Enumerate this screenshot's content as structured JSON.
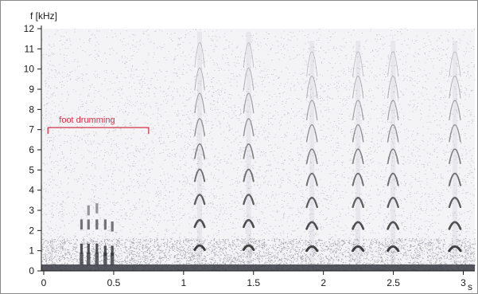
{
  "chart_data": {
    "type": "spectrogram",
    "xlabel": "s",
    "ylabel": "f [kHz]",
    "xlim": [
      0,
      3.05
    ],
    "ylim": [
      0,
      12
    ],
    "x_ticks": [
      {
        "value": 0,
        "label": "0"
      },
      {
        "value": 0.5,
        "label": "0.5"
      },
      {
        "value": 1,
        "label": "1"
      },
      {
        "value": 1.5,
        "label": "1.5"
      },
      {
        "value": 2,
        "label": "2"
      },
      {
        "value": 2.5,
        "label": "2.5"
      },
      {
        "value": 3,
        "label": "3"
      }
    ],
    "y_ticks": [
      {
        "value": 0,
        "label": "0"
      },
      {
        "value": 1,
        "label": "1"
      },
      {
        "value": 2,
        "label": "2"
      },
      {
        "value": 3,
        "label": "3"
      },
      {
        "value": 4,
        "label": "4"
      },
      {
        "value": 5,
        "label": "5"
      },
      {
        "value": 6,
        "label": "6"
      },
      {
        "value": 7,
        "label": "7"
      },
      {
        "value": 8,
        "label": "8"
      },
      {
        "value": 9,
        "label": "9"
      },
      {
        "value": 10,
        "label": "10"
      },
      {
        "value": 11,
        "label": "11"
      },
      {
        "value": 12,
        "label": "12"
      }
    ],
    "grid": false,
    "annotation": {
      "label": "foot drumming",
      "x_start": 0.03,
      "x_end": 0.75,
      "y": 7.1,
      "color": "#d2334b"
    },
    "drumming_bursts": [
      {
        "t": 0.27,
        "bands": [
          1.1,
          2.3
        ]
      },
      {
        "t": 0.32,
        "bands": [
          1.1,
          2.3,
          3.0
        ]
      },
      {
        "t": 0.38,
        "bands": [
          1.1,
          2.3,
          3.1
        ]
      },
      {
        "t": 0.44,
        "bands": [
          1.0,
          2.3
        ]
      },
      {
        "t": 0.49,
        "bands": [
          1.0,
          2.2
        ]
      }
    ],
    "calls": [
      {
        "t": 1.08,
        "duration": 0.07,
        "fundamental_khz": 1.25,
        "harmonics": 9
      },
      {
        "t": 1.43,
        "duration": 0.07,
        "fundamental_khz": 1.25,
        "harmonics": 9
      },
      {
        "t": 1.88,
        "duration": 0.075,
        "fundamental_khz": 1.2,
        "harmonics": 9
      },
      {
        "t": 2.21,
        "duration": 0.075,
        "fundamental_khz": 1.2,
        "harmonics": 9
      },
      {
        "t": 2.46,
        "duration": 0.075,
        "fundamental_khz": 1.2,
        "harmonics": 9
      },
      {
        "t": 2.9,
        "duration": 0.08,
        "fundamental_khz": 1.2,
        "harmonics": 9
      }
    ],
    "colors": {
      "calls": "#3c3c3c",
      "noise": "#8a8a96",
      "frame": "#8a8a8a",
      "axis": "#1a1a1a"
    }
  }
}
